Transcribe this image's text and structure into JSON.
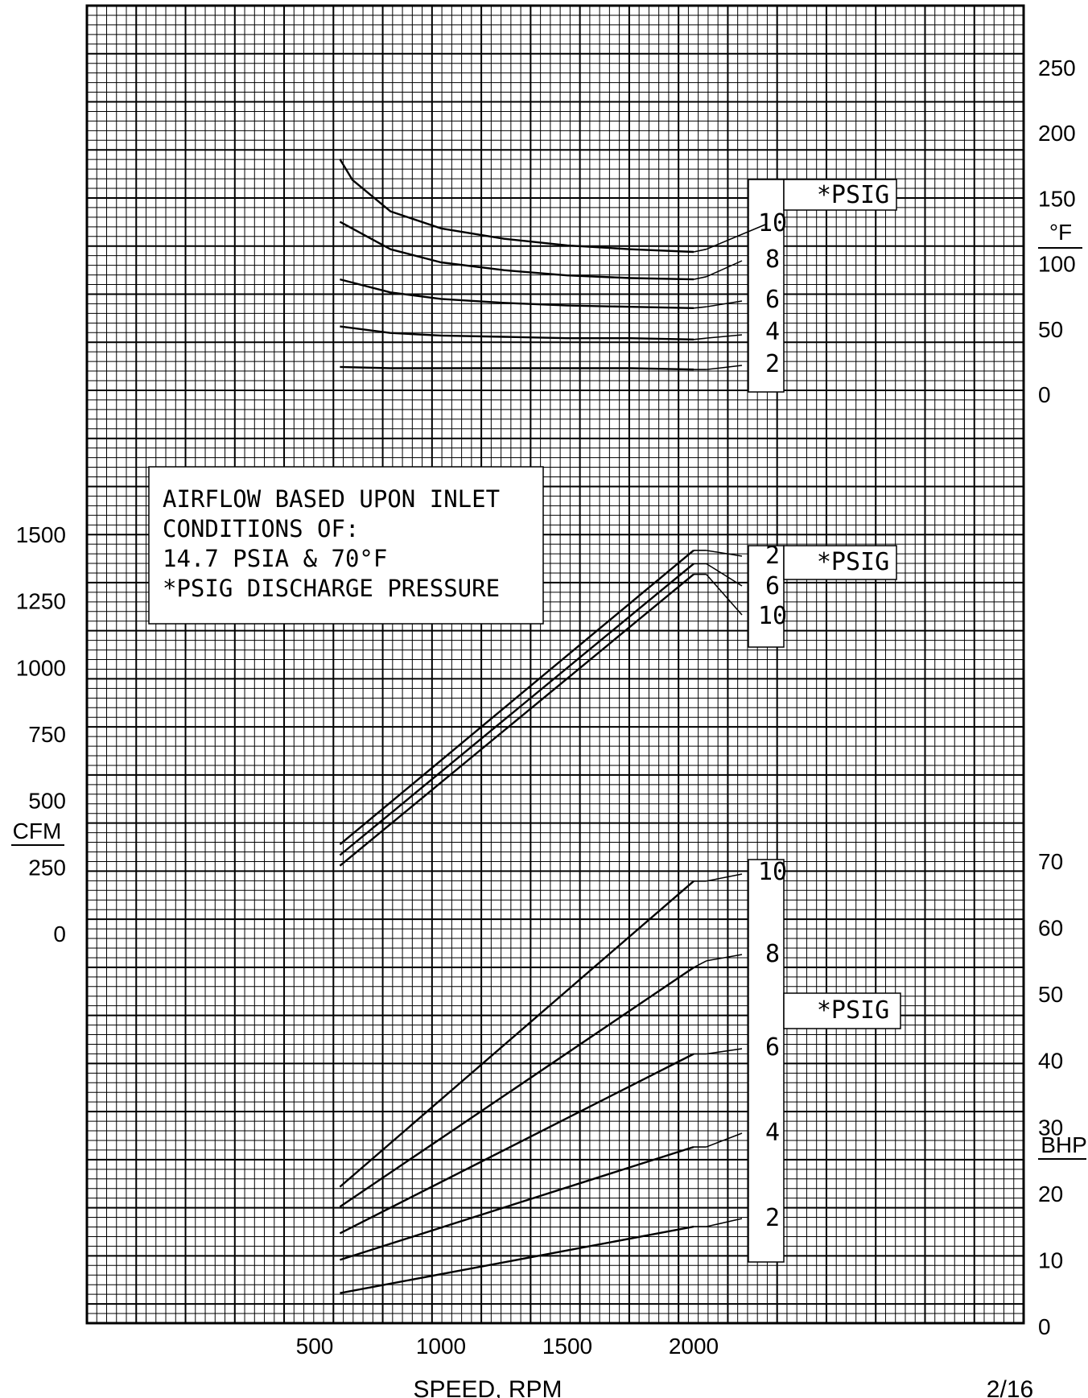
{
  "chart_data": [
    {
      "panel": "temperature",
      "type": "line",
      "x_axis": {
        "label": "SPEED, RPM",
        "ticks": [
          500,
          1000,
          1500,
          2000
        ]
      },
      "y_axis": {
        "side": "right",
        "unit_top": "°F",
        "ticks": [
          0,
          50,
          100,
          150,
          200,
          250
        ],
        "ylim": [
          0,
          290
        ]
      },
      "legend_title": "*PSIG",
      "series": [
        {
          "name": "2",
          "x": [
            600,
            800,
            1000,
            1250,
            1500,
            1750,
            2000,
            2050
          ],
          "y": [
            21,
            20,
            20,
            20,
            20,
            20,
            19,
            19
          ]
        },
        {
          "name": "4",
          "x": [
            600,
            800,
            1000,
            1250,
            1500,
            1750,
            2000,
            2050
          ],
          "y": [
            52,
            47,
            45,
            44,
            43,
            43,
            42,
            43
          ]
        },
        {
          "name": "6",
          "x": [
            600,
            800,
            1000,
            1250,
            1500,
            1750,
            2000,
            2050
          ],
          "y": [
            88,
            78,
            73,
            70,
            68,
            67,
            66,
            67
          ]
        },
        {
          "name": "8",
          "x": [
            600,
            800,
            1000,
            1250,
            1500,
            1750,
            2000,
            2050
          ],
          "y": [
            132,
            111,
            101,
            95,
            91,
            89,
            88,
            90
          ]
        },
        {
          "name": "10",
          "x": [
            600,
            650,
            800,
            1000,
            1250,
            1500,
            1750,
            2000,
            2050
          ],
          "y": [
            180,
            164,
            140,
            127,
            119,
            114,
            111,
            109,
            111
          ]
        }
      ]
    },
    {
      "panel": "airflow",
      "type": "line",
      "x_axis": {
        "label": "SPEED, RPM",
        "ticks": [
          500,
          1000,
          1500,
          2000
        ]
      },
      "y_axis": {
        "side": "left",
        "unit_top": "CFM",
        "ticks": [
          0,
          250,
          500,
          750,
          1000,
          1250,
          1500
        ]
      },
      "legend_title": "*PSIG",
      "series": [
        {
          "name": "2",
          "x": [
            600,
            2000,
            2050
          ],
          "y": [
            335,
            1440,
            1440
          ]
        },
        {
          "name": "6",
          "x": [
            600,
            2000,
            2050
          ],
          "y": [
            295,
            1390,
            1390
          ]
        },
        {
          "name": "10",
          "x": [
            600,
            2000,
            2050
          ],
          "y": [
            255,
            1350,
            1350
          ]
        }
      ]
    },
    {
      "panel": "power",
      "type": "line",
      "x_axis": {
        "label": "SPEED, RPM",
        "ticks": [
          500,
          1000,
          1500,
          2000
        ]
      },
      "y_axis": {
        "side": "right",
        "unit_top": "BHP",
        "ticks": [
          0,
          10,
          20,
          30,
          40,
          50,
          60,
          70
        ]
      },
      "legend_title": "*PSIG",
      "series": [
        {
          "name": "2",
          "x": [
            600,
            2000,
            2050
          ],
          "y": [
            5,
            15,
            15
          ]
        },
        {
          "name": "4",
          "x": [
            600,
            2000,
            2050
          ],
          "y": [
            10,
            27,
            27
          ]
        },
        {
          "name": "6",
          "x": [
            600,
            2000,
            2050
          ],
          "y": [
            14,
            41,
            41
          ]
        },
        {
          "name": "8",
          "x": [
            600,
            2000,
            2050
          ],
          "y": [
            18,
            54,
            55
          ]
        },
        {
          "name": "10",
          "x": [
            600,
            2000,
            2050
          ],
          "y": [
            21,
            67,
            67
          ]
        }
      ]
    }
  ],
  "note": [
    "AIRFLOW BASED UPON INLET",
    "CONDITIONS OF:",
    "14.7 PSIA & 70°F",
    "*PSIG DISCHARGE PRESSURE"
  ],
  "page_number": "2/16"
}
